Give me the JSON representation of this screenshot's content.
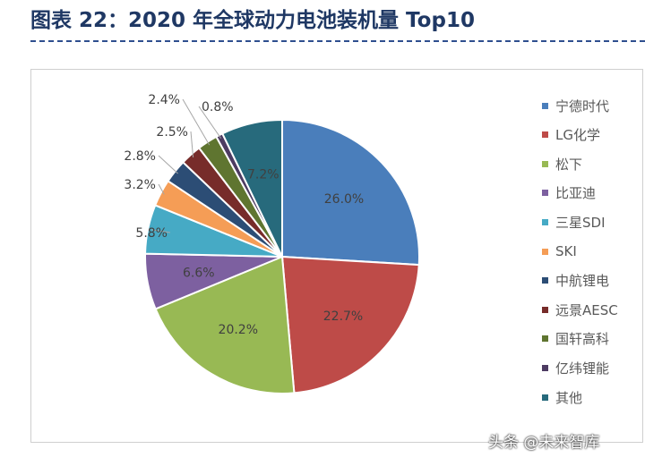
{
  "page": {
    "title": "图表 22：2020 年全球动力电池装机量 Top10"
  },
  "chart_data": {
    "type": "pie",
    "title": "",
    "slices": [
      {
        "name": "宁德时代",
        "value": 26.0,
        "label": "26.0%",
        "color": "#4a7ebb"
      },
      {
        "name": "LG化学",
        "value": 22.7,
        "label": "22.7%",
        "color": "#be4b48"
      },
      {
        "name": "松下",
        "value": 20.2,
        "label": "20.2%",
        "color": "#98b954"
      },
      {
        "name": "比亚迪",
        "value": 6.6,
        "label": "6.6%",
        "color": "#7d60a0"
      },
      {
        "name": "三星SDI",
        "value": 5.8,
        "label": "5.8%",
        "color": "#46aac5"
      },
      {
        "name": "SKI",
        "value": 3.2,
        "label": "3.2%",
        "color": "#f59d56"
      },
      {
        "name": "中航锂电",
        "value": 2.8,
        "label": "2.8%",
        "color": "#2c4d75"
      },
      {
        "name": "远景AESC",
        "value": 2.5,
        "label": "2.5%",
        "color": "#772c2a"
      },
      {
        "name": "国轩高科",
        "value": 2.4,
        "label": "2.4%",
        "color": "#5f7530"
      },
      {
        "name": "亿纬锂能",
        "value": 0.8,
        "label": "0.8%",
        "color": "#4d3b62"
      },
      {
        "name": "其他",
        "value": 7.2,
        "label": "7.2%",
        "color": "#276a7c"
      }
    ],
    "legend_position": "right"
  },
  "watermark": {
    "text": "头条 @未来智库"
  }
}
